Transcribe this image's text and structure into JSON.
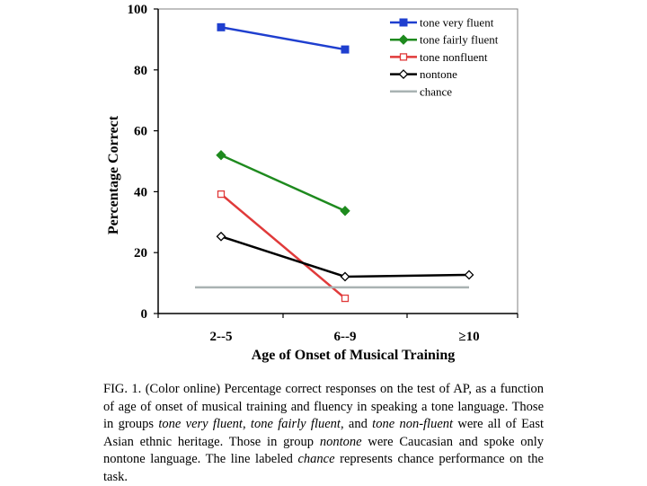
{
  "chart_data": {
    "type": "line",
    "xlabel": "Age of Onset of Musical Training",
    "ylabel": "Percentage Correct",
    "categories": [
      "2--5",
      "6--9",
      "≥10"
    ],
    "ylim": [
      0,
      100
    ],
    "yticks": [
      "0",
      "20",
      "40",
      "60",
      "80",
      "100"
    ],
    "grid": false,
    "legend_position": "top-right",
    "series": [
      {
        "name": "tone very fluent",
        "values": [
          94,
          86.7,
          null
        ],
        "color": "#1f3fcf",
        "marker": "filled-square"
      },
      {
        "name": "tone fairly fluent",
        "values": [
          52,
          33.7,
          null
        ],
        "color": "#1e8a1e",
        "marker": "filled-diamond"
      },
      {
        "name": "tone nonfluent",
        "values": [
          39.2,
          5,
          null
        ],
        "color": "#e03a3a",
        "marker": "open-square"
      },
      {
        "name": "nontone",
        "values": [
          25.3,
          12.1,
          12.7
        ],
        "color": "#000000",
        "marker": "open-diamond"
      },
      {
        "name": "chance",
        "values": [
          8.6,
          8.6,
          8.6
        ],
        "color": "#a9b3b3",
        "marker": "none"
      }
    ]
  },
  "caption": {
    "parts": [
      {
        "text": "FIG. 1. (Color online) Percentage correct responses on the test of AP, as a function of age of onset of musical training and fluency in speaking a tone language. Those in groups ",
        "italic": false
      },
      {
        "text": "tone very fluent",
        "italic": true
      },
      {
        "text": ", ",
        "italic": false
      },
      {
        "text": "tone fairly fluent",
        "italic": true
      },
      {
        "text": ", and ",
        "italic": false
      },
      {
        "text": "tone non-fluent",
        "italic": true
      },
      {
        "text": " were all of East Asian ethnic heritage. Those in group ",
        "italic": false
      },
      {
        "text": "nontone",
        "italic": true
      },
      {
        "text": " were Caucasian and spoke only nontone language. The line labeled ",
        "italic": false
      },
      {
        "text": "chance",
        "italic": true
      },
      {
        "text": " represents chance performance on the task.",
        "italic": false
      }
    ]
  }
}
